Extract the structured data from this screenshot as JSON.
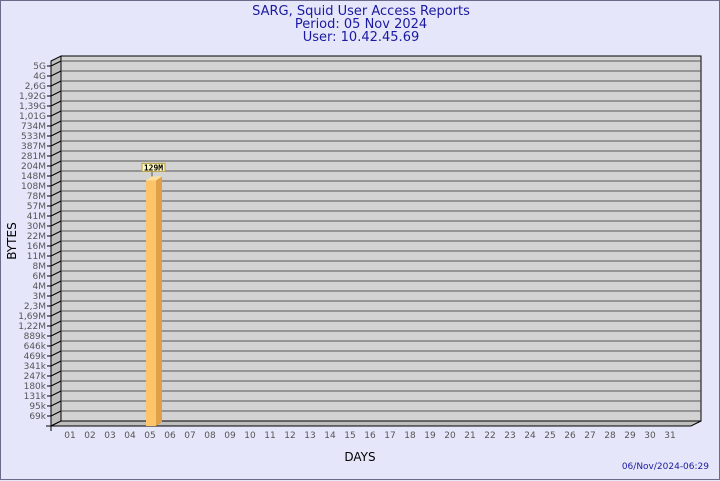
{
  "header": {
    "title": "SARG, Squid User Access Reports",
    "period": "Period: 05 Nov 2024",
    "user": "User: 10.42.45.69"
  },
  "timestamp": "06/Nov/2024-06:29",
  "colors": {
    "background": "#e6e6fa",
    "plot": "#d3d3d3",
    "bar": "#fdc46a",
    "bar_side": "#e0a04a",
    "title": "#1a1aa0"
  },
  "chart_data": {
    "type": "bar",
    "title": "SARG, Squid User Access Reports",
    "xlabel": "DAYS",
    "ylabel": "BYTES",
    "y_scale": "log",
    "grid": true,
    "y_ticks": [
      "5G",
      "4G",
      "2,6G",
      "1,92G",
      "1,39G",
      "1,01G",
      "734M",
      "533M",
      "387M",
      "281M",
      "204M",
      "148M",
      "108M",
      "78M",
      "57M",
      "41M",
      "30M",
      "22M",
      "16M",
      "11M",
      "8M",
      "6M",
      "4M",
      "3M",
      "2,3M",
      "1,69M",
      "1,22M",
      "889k",
      "646k",
      "469k",
      "341k",
      "247k",
      "180k",
      "131k",
      "95k",
      "69k"
    ],
    "categories": [
      "01",
      "02",
      "03",
      "04",
      "05",
      "06",
      "07",
      "08",
      "09",
      "10",
      "11",
      "12",
      "13",
      "14",
      "15",
      "16",
      "17",
      "18",
      "19",
      "20",
      "21",
      "22",
      "23",
      "24",
      "25",
      "26",
      "27",
      "28",
      "29",
      "30",
      "31"
    ],
    "values": [
      0,
      0,
      0,
      0,
      129000000,
      0,
      0,
      0,
      0,
      0,
      0,
      0,
      0,
      0,
      0,
      0,
      0,
      0,
      0,
      0,
      0,
      0,
      0,
      0,
      0,
      0,
      0,
      0,
      0,
      0,
      0
    ],
    "data_labels": {
      "05": "129M"
    }
  }
}
